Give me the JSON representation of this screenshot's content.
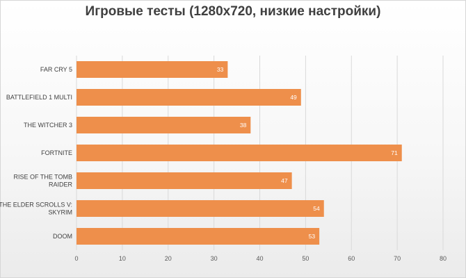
{
  "chart_data": {
    "type": "bar",
    "orientation": "horizontal",
    "title": "Игровые тесты (1280x720, низкие настройки)",
    "categories": [
      [
        "FAR CRY 5"
      ],
      [
        "BATTLEFIELD 1 MULTI"
      ],
      [
        "THE WITCHER 3"
      ],
      [
        "FORTNITE"
      ],
      [
        "RISE OF THE TOMB",
        "RAIDER"
      ],
      [
        "THE ELDER SCROLLS V:",
        "SKYRIM"
      ],
      [
        "DOOM"
      ]
    ],
    "values": [
      33,
      49,
      38,
      71,
      47,
      54,
      53
    ],
    "xlim": [
      0,
      80
    ],
    "xticks": [
      0,
      10,
      20,
      30,
      40,
      50,
      60,
      70,
      80
    ],
    "grid": "vertical",
    "legend": "none",
    "bar_color": "#ee8f4b",
    "label_color": "#ffffff"
  }
}
